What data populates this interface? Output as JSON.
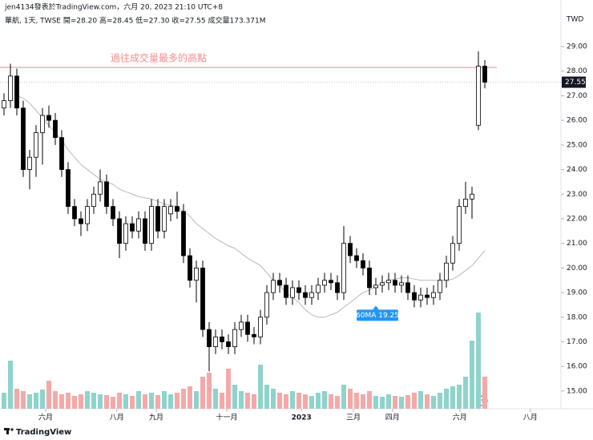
{
  "header": {
    "line1": "jen4134發表於TradingView.com，六月 20, 2023 21:10 UTC+8",
    "line2": "華航, 1天, TWSE  開=28.20  高=28.45  低=27.30  收=27.55  成交量173.371M"
  },
  "logo": "TradingView",
  "chart_data": {
    "type": "candlestick",
    "currency": "TWD",
    "up_color": "#ffffff",
    "down_color": "#000000",
    "wick_color": "#000000",
    "volume_up_color": "#8fd3cb",
    "volume_down_color": "#f4a9a8",
    "ma_color": "#b8b8b8",
    "ma_label": "60MA 19.25",
    "ma_label_color": "#2196f3",
    "annotation": {
      "text": "過往成交量最多的高點",
      "value": 28.15,
      "color": "#f28b8b"
    },
    "open": [
      26.5,
      26.8,
      27.8,
      26.5,
      24.0,
      24.5,
      25.5,
      26.2,
      26.0,
      25.3,
      24.0,
      22.5,
      22.0,
      21.8,
      22.5,
      23.0,
      23.5,
      22.5,
      22.0,
      21.0,
      21.8,
      21.5,
      22.0,
      21.0,
      22.5,
      21.5,
      22.2,
      22.5,
      22.3,
      20.5,
      19.5,
      20.0,
      17.5,
      16.8,
      17.2,
      17.0,
      16.8,
      17.5,
      17.8,
      17.3,
      17.2,
      18.0,
      19.0,
      19.5,
      19.3,
      18.8,
      19.2,
      19.0,
      18.8,
      19.0,
      19.3,
      19.5,
      19.4,
      19.0,
      21.0,
      20.5,
      20.3,
      20.0,
      19.2,
      19.3,
      19.4,
      19.5,
      19.3,
      19.4,
      19.0,
      18.7,
      18.9,
      18.8,
      19.0,
      19.5,
      20.2,
      21.0,
      22.5,
      22.8,
      25.8,
      28.2
    ],
    "high": [
      27.1,
      28.3,
      28.1,
      26.8,
      24.8,
      25.8,
      26.5,
      26.6,
      26.3,
      25.6,
      24.3,
      22.8,
      22.3,
      22.8,
      23.3,
      24.0,
      23.8,
      22.8,
      22.3,
      22.1,
      22.1,
      22.3,
      22.3,
      22.8,
      22.8,
      22.8,
      22.8,
      23.1,
      22.6,
      20.8,
      20.3,
      20.3,
      17.8,
      17.5,
      17.5,
      17.3,
      17.8,
      18.1,
      18.1,
      17.6,
      18.3,
      19.3,
      19.8,
      19.8,
      19.6,
      19.5,
      19.5,
      19.3,
      19.3,
      19.6,
      19.8,
      19.8,
      19.7,
      21.7,
      21.3,
      20.8,
      20.6,
      20.3,
      19.6,
      19.7,
      19.8,
      19.8,
      19.7,
      19.7,
      19.3,
      19.2,
      19.2,
      19.3,
      19.8,
      20.5,
      21.3,
      22.8,
      23.5,
      23.3,
      28.8,
      28.45
    ],
    "low": [
      26.2,
      26.5,
      26.2,
      23.7,
      23.2,
      23.7,
      24.2,
      25.7,
      25.0,
      23.7,
      22.2,
      21.7,
      21.3,
      21.5,
      22.2,
      22.7,
      22.2,
      21.7,
      20.4,
      20.7,
      21.2,
      21.2,
      20.7,
      20.7,
      21.2,
      21.2,
      21.9,
      22.0,
      20.2,
      19.2,
      18.6,
      17.2,
      15.8,
      16.5,
      16.7,
      16.5,
      16.5,
      17.2,
      17.0,
      16.9,
      16.9,
      17.7,
      18.7,
      19.0,
      18.5,
      18.5,
      18.7,
      18.5,
      18.5,
      18.7,
      19.0,
      19.1,
      18.7,
      18.7,
      20.2,
      20.0,
      19.7,
      18.9,
      18.9,
      19.0,
      19.1,
      19.0,
      19.0,
      18.7,
      18.4,
      18.4,
      18.5,
      18.5,
      18.7,
      19.2,
      19.9,
      20.7,
      22.2,
      22.0,
      25.6,
      27.3
    ],
    "close": [
      26.8,
      27.8,
      26.5,
      24.0,
      24.5,
      25.5,
      26.2,
      26.0,
      25.3,
      24.0,
      22.5,
      22.0,
      21.8,
      22.5,
      23.0,
      23.5,
      22.5,
      22.0,
      21.0,
      21.8,
      21.5,
      22.0,
      21.0,
      22.5,
      21.5,
      22.5,
      22.5,
      22.3,
      20.5,
      19.5,
      20.0,
      17.5,
      16.8,
      17.2,
      17.0,
      16.8,
      17.5,
      17.8,
      17.3,
      17.2,
      18.0,
      19.0,
      19.5,
      19.3,
      18.8,
      19.2,
      19.0,
      18.8,
      19.0,
      19.3,
      19.5,
      19.4,
      19.0,
      21.0,
      20.5,
      20.3,
      20.0,
      19.2,
      19.3,
      19.4,
      19.5,
      19.3,
      19.4,
      19.0,
      18.7,
      18.9,
      18.8,
      19.0,
      19.5,
      20.2,
      21.0,
      22.5,
      22.8,
      23.0,
      28.2,
      27.55
    ],
    "volume": [
      20,
      60,
      25,
      22,
      18,
      20,
      24,
      35,
      22,
      18,
      20,
      16,
      18,
      22,
      20,
      18,
      17,
      15,
      20,
      18,
      16,
      22,
      18,
      20,
      17,
      22,
      18,
      20,
      25,
      28,
      22,
      40,
      45,
      25,
      20,
      50,
      30,
      22,
      20,
      18,
      55,
      30,
      25,
      20,
      18,
      22,
      20,
      18,
      16,
      20,
      22,
      18,
      16,
      30,
      25,
      20,
      18,
      22,
      16,
      15,
      18,
      16,
      15,
      17,
      20,
      22,
      18,
      16,
      20,
      25,
      28,
      30,
      40,
      85,
      120,
      40
    ],
    "ma": [
      null,
      null,
      27.0,
      26.9,
      26.7,
      26.4,
      26.1,
      25.8,
      25.5,
      25.2,
      24.8,
      24.5,
      24.2,
      24.0,
      23.8,
      23.6,
      23.5,
      23.4,
      23.2,
      23.1,
      23.0,
      22.9,
      22.85,
      22.8,
      22.7,
      22.6,
      22.55,
      22.5,
      22.3,
      22.1,
      21.8,
      21.6,
      21.4,
      21.2,
      21.05,
      20.9,
      20.8,
      20.6,
      20.4,
      20.25,
      20.1,
      19.8,
      19.5,
      19.3,
      19.0,
      18.8,
      18.6,
      18.3,
      18.1,
      18.0,
      18.0,
      18.1,
      18.2,
      18.4,
      18.6,
      18.8,
      19.0,
      19.1,
      19.25,
      19.4,
      19.5,
      19.55,
      19.6,
      19.6,
      19.55,
      19.5,
      19.5,
      19.5,
      19.5,
      19.5,
      19.55,
      19.7,
      19.9,
      20.1,
      20.4,
      20.7
    ],
    "ma_label_index": 58,
    "xlim": [
      -0.625,
      86.875
    ],
    "xticks": [
      {
        "value": 6.5,
        "label": "六月"
      },
      {
        "value": 17.6,
        "label": "八月"
      },
      {
        "value": 23.75,
        "label": "九月"
      },
      {
        "value": 34.75,
        "label": "十一月"
      },
      {
        "value": 46.4,
        "label": "2023"
      },
      {
        "value": 54.5,
        "label": "三月"
      },
      {
        "value": 60.6,
        "label": "四月"
      },
      {
        "value": 71.1,
        "label": "六月"
      },
      {
        "value": 82.1,
        "label": "八月"
      }
    ],
    "ylim": [
      14.28,
      30.89
    ],
    "yticks": [
      {
        "value": 15,
        "label": "15.00"
      },
      {
        "value": 16,
        "label": "16.00"
      },
      {
        "value": 17,
        "label": "17.00"
      },
      {
        "value": 18,
        "label": "18.00"
      },
      {
        "value": 19,
        "label": "19.00"
      },
      {
        "value": 20,
        "label": "20.00"
      },
      {
        "value": 21,
        "label": "21.00"
      },
      {
        "value": 22,
        "label": "22.00"
      },
      {
        "value": 23,
        "label": "23.00"
      },
      {
        "value": 24,
        "label": "24.00"
      },
      {
        "value": 25,
        "label": "25.00"
      },
      {
        "value": 26,
        "label": "26.00"
      },
      {
        "value": 27,
        "label": "27.00"
      },
      {
        "value": 28,
        "label": "28.00"
      },
      {
        "value": 29,
        "label": "29.00"
      }
    ],
    "vlim": [
      0,
      125
    ]
  }
}
